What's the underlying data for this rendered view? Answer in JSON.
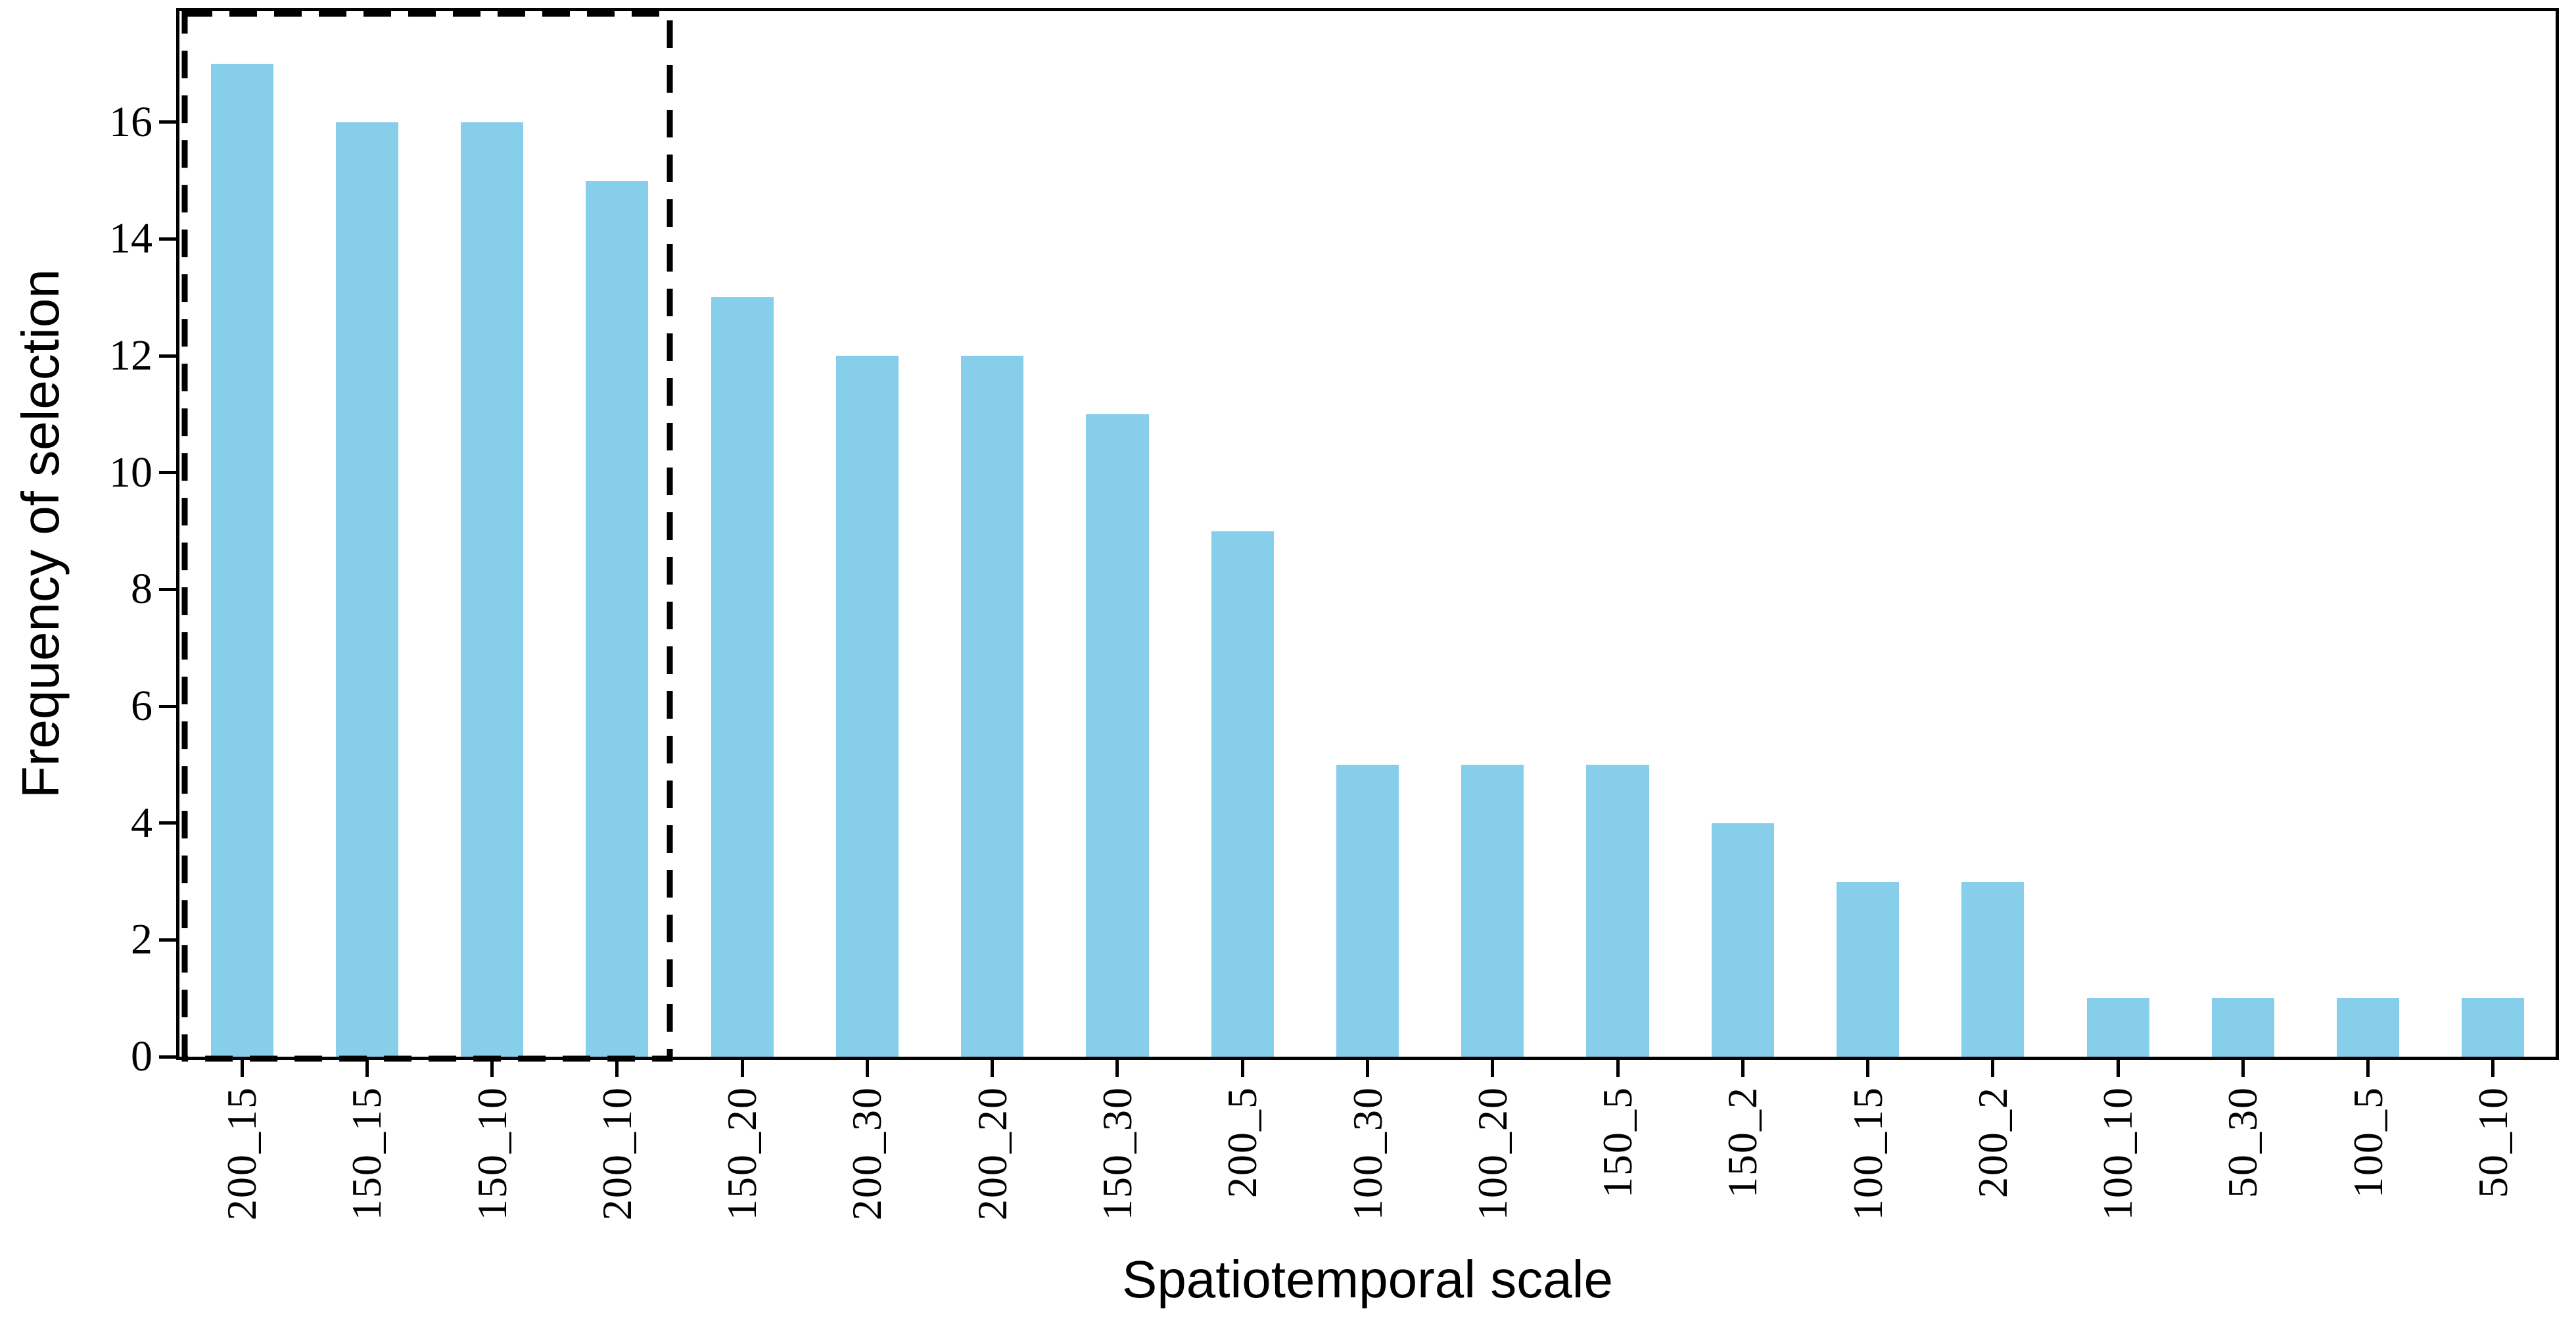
{
  "chart_data": {
    "type": "bar",
    "title": "",
    "xlabel": "Spatiotemporal scale",
    "ylabel": "Frequency of selection",
    "categories": [
      "200_15",
      "150_15",
      "150_10",
      "200_10",
      "150_20",
      "200_30",
      "200_20",
      "150_30",
      "200_5",
      "100_30",
      "100_20",
      "150_5",
      "150_2",
      "100_15",
      "200_2",
      "100_10",
      "50_30",
      "100_5",
      "50_10"
    ],
    "values": [
      17,
      16,
      16,
      15,
      13,
      12,
      12,
      11,
      9,
      5,
      5,
      5,
      4,
      3,
      3,
      1,
      1,
      1,
      1
    ],
    "yticks": [
      0,
      2,
      4,
      6,
      8,
      10,
      12,
      14,
      16
    ],
    "ylim": [
      0,
      17.9
    ],
    "grid": false,
    "legend_position": "none",
    "bar_color": "#87CEEB",
    "axis_color": "#000000",
    "annotation": {
      "shape": "dashed-rectangle",
      "color": "#000000",
      "highlighted_categories": [
        "200_15",
        "150_15",
        "150_10",
        "200_10"
      ]
    }
  }
}
